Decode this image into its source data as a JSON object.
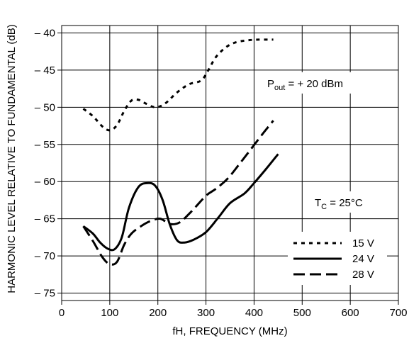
{
  "chart_data": {
    "type": "line",
    "xlabel": "fH, FREQUENCY (MHz)",
    "ylabel": "HARMONIC LEVEL RELATIVE TO FUNDAMENTAL (dB)",
    "xlim": [
      0,
      700
    ],
    "ylim": [
      -76,
      -39
    ],
    "x_ticks": [
      0,
      100,
      200,
      300,
      400,
      500,
      600,
      700
    ],
    "y_ticks": [
      -40,
      -45,
      -50,
      -55,
      -60,
      -65,
      -70,
      -75
    ],
    "x_tick_labels": [
      "0",
      "100",
      "200",
      "300",
      "400",
      "500",
      "600",
      "700"
    ],
    "y_tick_labels": [
      "– 40",
      "– 45",
      "– 50",
      "– 55",
      "– 60",
      "– 65",
      "– 70",
      "– 75"
    ],
    "grid": true,
    "legend_position": "bottom-right",
    "annotations": {
      "pout_main": "P",
      "pout_sub": "out",
      "pout_rest": " = + 20 dBm",
      "tc_main": "T",
      "tc_sub": "C",
      "tc_rest": " = 25°C"
    },
    "series": [
      {
        "name": "15 V",
        "style": "dotted",
        "x": [
          45,
          65,
          85,
          100,
          115,
          130,
          145,
          160,
          175,
          195,
          215,
          240,
          265,
          290,
          305,
          320,
          340,
          360,
          385,
          410,
          440
        ],
        "y": [
          -50.2,
          -51.2,
          -52.6,
          -53.1,
          -52.4,
          -50.5,
          -49.1,
          -49,
          -49.5,
          -50,
          -49.5,
          -48,
          -46.9,
          -46.4,
          -45,
          -43.3,
          -42,
          -41.3,
          -41,
          -40.9,
          -40.9
        ]
      },
      {
        "name": "24 V",
        "style": "solid",
        "x": [
          45,
          65,
          80,
          95,
          110,
          125,
          140,
          160,
          180,
          195,
          210,
          225,
          240,
          255,
          275,
          300,
          325,
          350,
          380,
          400,
          425,
          450
        ],
        "y": [
          -66,
          -67,
          -68.2,
          -69,
          -69.1,
          -67.5,
          -63.5,
          -60.7,
          -60.2,
          -60.6,
          -62.5,
          -65.8,
          -67.9,
          -68.2,
          -67.8,
          -66.8,
          -64.9,
          -62.9,
          -61.6,
          -60.2,
          -58.3,
          -56.3
        ]
      },
      {
        "name": "28 V",
        "style": "dashed",
        "x": [
          45,
          65,
          85,
          100,
          115,
          130,
          145,
          165,
          185,
          205,
          225,
          245,
          270,
          300,
          320,
          345,
          370,
          395,
          420,
          440
        ],
        "y": [
          -66,
          -68,
          -70.2,
          -71.1,
          -70.8,
          -68.5,
          -67,
          -66,
          -65.3,
          -65,
          -65.7,
          -65.5,
          -64,
          -61.9,
          -61,
          -59.6,
          -57.6,
          -55.5,
          -53.4,
          -51.8
        ]
      }
    ]
  }
}
